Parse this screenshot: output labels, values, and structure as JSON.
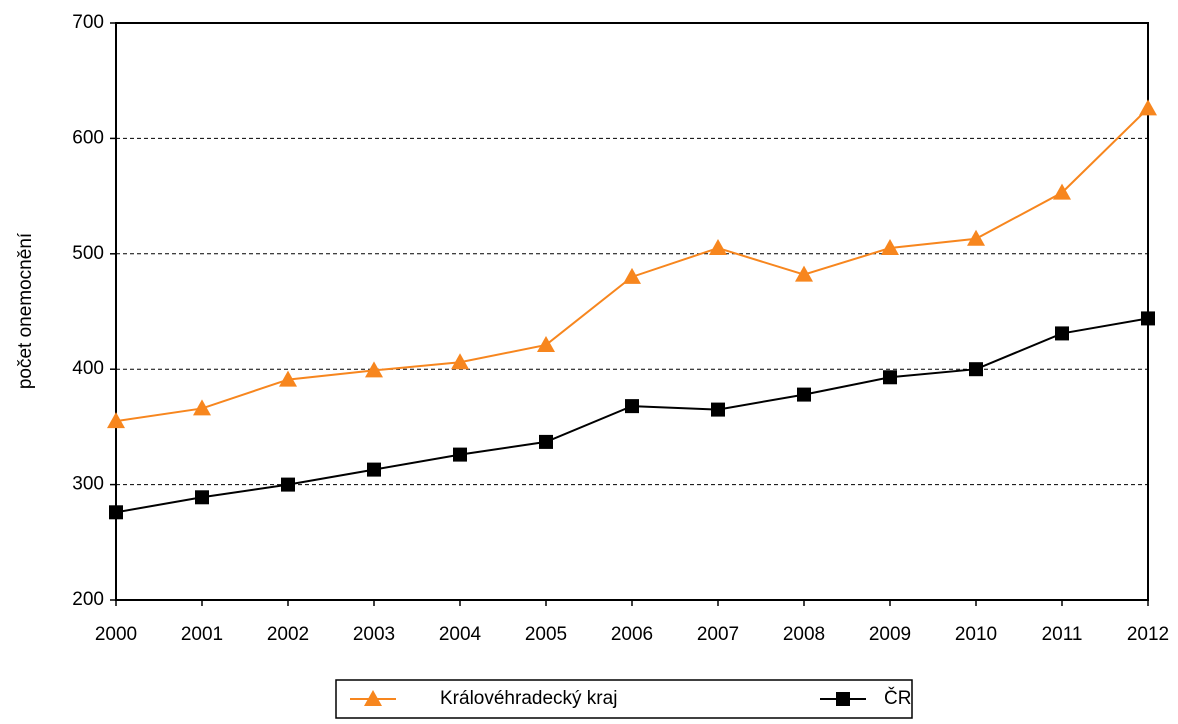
{
  "chart_data": {
    "type": "line",
    "y_label": "počet onemocnění",
    "x": [
      2000,
      2001,
      2002,
      2003,
      2004,
      2005,
      2006,
      2007,
      2008,
      2009,
      2010,
      2011,
      2012
    ],
    "xlim": [
      2000,
      2012
    ],
    "xticks": [
      2000,
      2001,
      2002,
      2003,
      2004,
      2005,
      2006,
      2007,
      2008,
      2009,
      2010,
      2011,
      2012
    ],
    "ylim": [
      200,
      700
    ],
    "yticks": [
      200,
      300,
      400,
      500,
      600,
      700
    ],
    "grid": true,
    "legend": "bottom",
    "series": [
      {
        "name": "Královéhradecký kraj",
        "color": "#f7861e",
        "marker": "triangle",
        "values": [
          355,
          366,
          391,
          399,
          406,
          421,
          480,
          505,
          482,
          505,
          513,
          553,
          626
        ]
      },
      {
        "name": "ČR",
        "color": "#000000",
        "marker": "square",
        "values": [
          276,
          289,
          300,
          313,
          326,
          337,
          368,
          365,
          378,
          393,
          400,
          431,
          444
        ]
      }
    ]
  }
}
